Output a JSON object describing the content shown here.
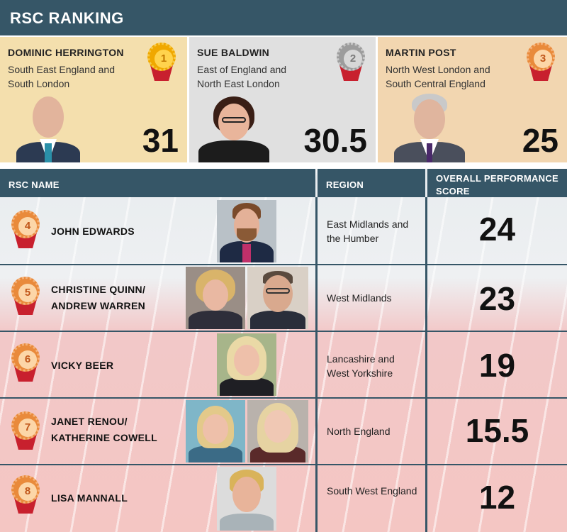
{
  "title": "RSC RANKING",
  "podium": [
    {
      "name": "DOMINIC HERRINGTON",
      "region": "South East England and South London",
      "score": "31",
      "rank": "1",
      "medal": "gold-medal-icon"
    },
    {
      "name": "SUE BALDWIN",
      "region": "East of England and North East London",
      "score": "30.5",
      "rank": "2",
      "medal": "silver-medal-icon"
    },
    {
      "name": "MARTIN POST",
      "region": "North West London and South Central England",
      "score": "25",
      "rank": "3",
      "medal": "bronze-medal-icon"
    }
  ],
  "table": {
    "headers": {
      "name": "RSC NAME",
      "region": "REGION",
      "score": "OVERALL PERFORMANCE SCORE"
    },
    "rows": [
      {
        "rank": "4",
        "name_line1": "JOHN EDWARDS",
        "name_line2": "",
        "region": "East Midlands and the Humber",
        "score": "24"
      },
      {
        "rank": "5",
        "name_line1": "CHRISTINE QUINN/",
        "name_line2": "ANDREW WARREN",
        "region": "West Midlands",
        "score": "23"
      },
      {
        "rank": "6",
        "name_line1": "VICKY BEER",
        "name_line2": "",
        "region": "Lancashire and West Yorkshire",
        "score": "19"
      },
      {
        "rank": "7",
        "name_line1": "JANET RENOU/",
        "name_line2": "KATHERINE COWELL",
        "region": "North England",
        "score": "15.5"
      },
      {
        "rank": "8",
        "name_line1": "LISA MANNALL",
        "name_line2": "",
        "region": "South West England",
        "score": "12"
      }
    ]
  },
  "colors": {
    "header": "#365667",
    "gold": "#f0a800",
    "silver": "#9c9c9c",
    "bronze": "#e98a3b",
    "ribbon": "#c8202e"
  }
}
